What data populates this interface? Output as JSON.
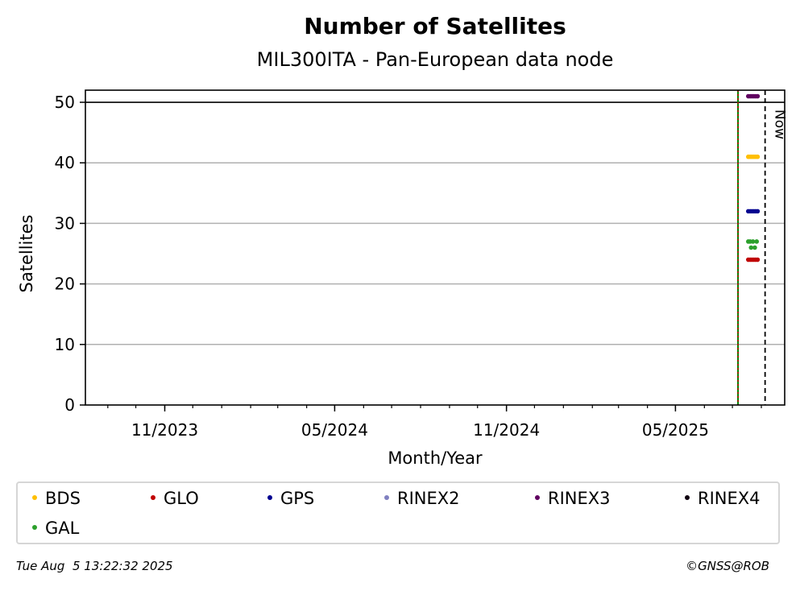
{
  "chart_data": {
    "type": "scatter",
    "title": "Number of Satellites",
    "subtitle": "MIL300ITA - Pan-European data node",
    "xlabel": "Month/Year",
    "ylabel": "Satellites",
    "xlim": [
      "2023-08-08",
      "2025-08-26"
    ],
    "ylim": [
      0,
      52
    ],
    "yticks": [
      0,
      10,
      20,
      30,
      40,
      50
    ],
    "xticks": [
      {
        "label": "11/2023",
        "date": "2023-11-01"
      },
      {
        "label": "05/2024",
        "date": "2024-05-01"
      },
      {
        "label": "11/2024",
        "date": "2024-11-01"
      },
      {
        "label": "05/2025",
        "date": "2025-05-01"
      }
    ],
    "grid": "horizontal",
    "reference_line_y": 50,
    "station_start_date": "2025-07-07",
    "now": {
      "label": "Now",
      "date": "2025-08-05"
    },
    "series": [
      {
        "name": "BDS",
        "color": "#ffbf00",
        "points": [
          [
            "2025-07-18",
            41
          ],
          [
            "2025-07-20",
            41
          ],
          [
            "2025-07-22",
            41
          ],
          [
            "2025-07-24",
            41
          ],
          [
            "2025-07-26",
            41
          ],
          [
            "2025-07-28",
            41
          ]
        ]
      },
      {
        "name": "GLO",
        "color": "#c00000",
        "points": [
          [
            "2025-07-18",
            24
          ],
          [
            "2025-07-20",
            24
          ],
          [
            "2025-07-22",
            24
          ],
          [
            "2025-07-24",
            24
          ],
          [
            "2025-07-26",
            24
          ],
          [
            "2025-07-28",
            24
          ]
        ]
      },
      {
        "name": "GPS",
        "color": "#000090",
        "points": [
          [
            "2025-07-18",
            32
          ],
          [
            "2025-07-20",
            32
          ],
          [
            "2025-07-22",
            32
          ],
          [
            "2025-07-24",
            32
          ],
          [
            "2025-07-26",
            32
          ],
          [
            "2025-07-28",
            32
          ]
        ]
      },
      {
        "name": "RINEX2",
        "color": "#8080c0",
        "points": []
      },
      {
        "name": "RINEX3",
        "color": "#600060",
        "points": [
          [
            "2025-07-18",
            51
          ],
          [
            "2025-07-20",
            51
          ],
          [
            "2025-07-22",
            51
          ],
          [
            "2025-07-24",
            51
          ],
          [
            "2025-07-26",
            51
          ],
          [
            "2025-07-28",
            51
          ]
        ]
      },
      {
        "name": "RINEX4",
        "color": "#100010",
        "points": []
      },
      {
        "name": "GAL",
        "color": "#2ca02c",
        "points": [
          [
            "2025-07-18",
            27
          ],
          [
            "2025-07-20",
            27
          ],
          [
            "2025-07-21",
            26
          ],
          [
            "2025-07-23",
            27
          ],
          [
            "2025-07-25",
            26
          ],
          [
            "2025-07-27",
            27
          ]
        ]
      }
    ]
  },
  "footer": {
    "timestamp": "Tue Aug  5 13:22:32 2025",
    "copyright": "©GNSS@ROB"
  }
}
